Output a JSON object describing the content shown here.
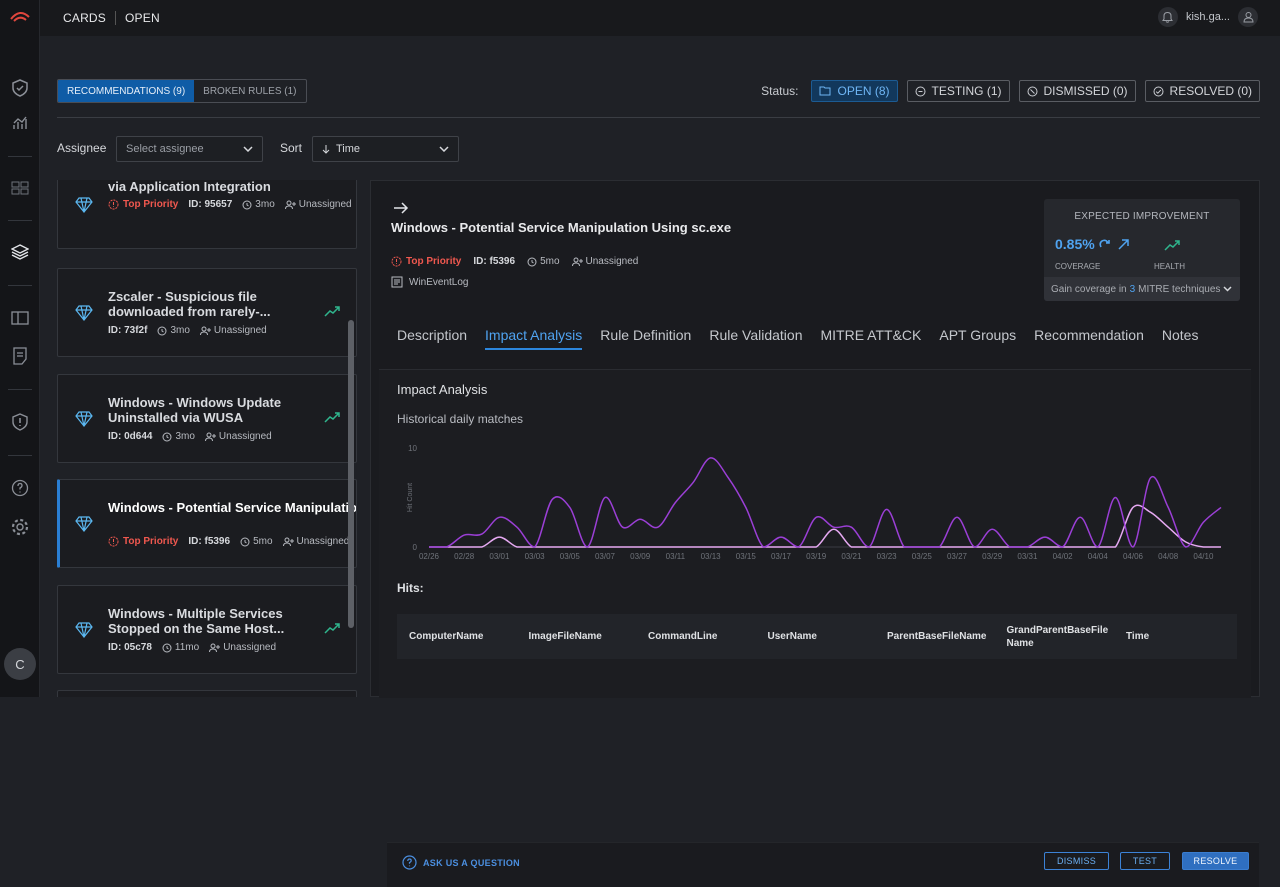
{
  "topbar": {
    "crumb1": "CARDS",
    "crumb2": "OPEN",
    "user": "kish.ga..."
  },
  "rail": {
    "avatar_letter": "C"
  },
  "segments": {
    "recommendations": "RECOMMENDATIONS (9)",
    "broken": "BROKEN RULES (1)"
  },
  "status": {
    "label": "Status:",
    "open": "OPEN (8)",
    "testing": "TESTING (1)",
    "dismissed": "DISMISSED (0)",
    "resolved": "RESOLVED (0)"
  },
  "filters": {
    "assignee_label": "Assignee",
    "assignee_placeholder": "Select assignee",
    "sort_label": "Sort",
    "sort_value": "Time"
  },
  "cards": [
    {
      "title": "Okta - Possible Password Extraction via Application Integration",
      "priority": "Top Priority",
      "id": "ID: 95657",
      "age": "3mo",
      "assignee": "Unassigned"
    },
    {
      "title": "Zscaler - Suspicious file downloaded from rarely-...",
      "id": "ID: 73f2f",
      "age": "3mo",
      "assignee": "Unassigned"
    },
    {
      "title": "Windows - Windows Update Uninstalled via WUSA",
      "id": "ID: 0d644",
      "age": "3mo",
      "assignee": "Unassigned"
    },
    {
      "title": "Windows - Potential Service Manipulation Using sc.exe",
      "priority": "Top Priority",
      "id": "ID: f5396",
      "age": "5mo",
      "assignee": "Unassigned"
    },
    {
      "title": "Windows - Multiple Services Stopped on the Same Host...",
      "id": "ID: 05c78",
      "age": "11mo",
      "assignee": "Unassigned"
    }
  ],
  "detail": {
    "title": "Windows - Potential Service Manipulation Using sc.exe",
    "priority": "Top Priority",
    "id": "ID: f5396",
    "age": "5mo",
    "assignee": "Unassigned",
    "source": "WinEventLog",
    "expected": {
      "header": "EXPECTED IMPROVEMENT",
      "coverage_value": "0.85%",
      "coverage_label": "COVERAGE",
      "health_label": "HEALTH",
      "footer_prefix": "Gain coverage in",
      "footer_count": "3",
      "footer_suffix": "MITRE techniques"
    },
    "tabs": [
      "Description",
      "Impact Analysis",
      "Rule Definition",
      "Rule Validation",
      "MITRE ATT&CK",
      "APT Groups",
      "Recommendation",
      "Notes"
    ],
    "panel_title": "Impact Analysis",
    "chart_subtitle": "Historical daily matches",
    "hits_label": "Hits:",
    "columns": [
      "ComputerName",
      "ImageFileName",
      "CommandLine",
      "UserName",
      "ParentBaseFileName",
      "GrandParentBaseFileName",
      "Time"
    ],
    "ask": "ASK US A QUESTION",
    "actions": {
      "dismiss": "DISMISS",
      "test": "TEST",
      "resolve": "RESOLVE"
    }
  },
  "colors": {
    "accent": "#2c86dc",
    "priority": "#f0584f",
    "series_main": "#9b3fd6",
    "series_secondary": "#e6a9f2"
  },
  "chart_data": {
    "type": "line",
    "ylabel": "Hit Count",
    "ylim": [
      0,
      10
    ],
    "yticks": [
      "10",
      "0"
    ],
    "x": [
      "02/26",
      "02/27",
      "02/28",
      "02/29",
      "03/01",
      "03/02",
      "03/03",
      "03/04",
      "03/05",
      "03/06",
      "03/07",
      "03/08",
      "03/09",
      "03/10",
      "03/11",
      "03/12",
      "03/13",
      "03/14",
      "03/15",
      "03/16",
      "03/17",
      "03/18",
      "03/19",
      "03/20",
      "03/21",
      "03/22",
      "03/23",
      "03/24",
      "03/25",
      "03/26",
      "03/27",
      "03/28",
      "03/29",
      "03/30",
      "03/31",
      "04/01",
      "04/02",
      "04/03",
      "04/04",
      "04/05",
      "04/06",
      "04/07",
      "04/08",
      "04/09",
      "04/10",
      "04/11"
    ],
    "xticks": [
      "02/26",
      "02/28",
      "03/01",
      "03/03",
      "03/05",
      "03/07",
      "03/09",
      "03/11",
      "03/13",
      "03/15",
      "03/17",
      "03/19",
      "03/21",
      "03/23",
      "03/25",
      "03/27",
      "03/29",
      "03/31",
      "04/02",
      "04/04",
      "04/06",
      "04/08",
      "04/10"
    ],
    "series": [
      {
        "values": [
          0,
          0,
          1.2,
          1.3,
          3.0,
          2.0,
          0,
          4.8,
          4.0,
          0,
          5.0,
          2.0,
          2.8,
          2.0,
          4.5,
          6.5,
          9.0,
          7.0,
          4.0,
          0,
          1.0,
          0,
          3.0,
          2.0,
          2.0,
          0,
          3.8,
          0,
          0,
          0,
          3.0,
          0,
          1.8,
          0,
          0,
          1.0,
          0,
          3.0,
          0,
          5.0,
          0,
          7.0,
          4.0,
          0,
          2.5,
          4.0
        ]
      },
      {
        "values": [
          0,
          0,
          0,
          0,
          1.0,
          0,
          0,
          0,
          0,
          0,
          0,
          0,
          0,
          0,
          0,
          0,
          0,
          0,
          0,
          0,
          0,
          0,
          0,
          1.8,
          0,
          0,
          0,
          0,
          0,
          0,
          0,
          0,
          0,
          0,
          0,
          0,
          0,
          0,
          0,
          0,
          4.0,
          3.5,
          2.0,
          0.5,
          0,
          0
        ]
      }
    ]
  }
}
